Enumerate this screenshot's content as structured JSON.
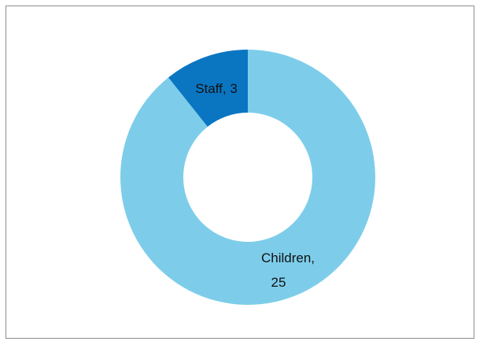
{
  "chart_data": {
    "type": "pie",
    "variant": "doughnut",
    "title": "",
    "categories": [
      "Children",
      "Staff"
    ],
    "values": [
      25,
      3
    ],
    "colors": [
      "#7dcdea",
      "#0a76c2"
    ],
    "labels": [
      {
        "line1": "Children,",
        "line2": "25"
      },
      {
        "line1": "Staff, 3"
      }
    ],
    "legend": "none"
  }
}
